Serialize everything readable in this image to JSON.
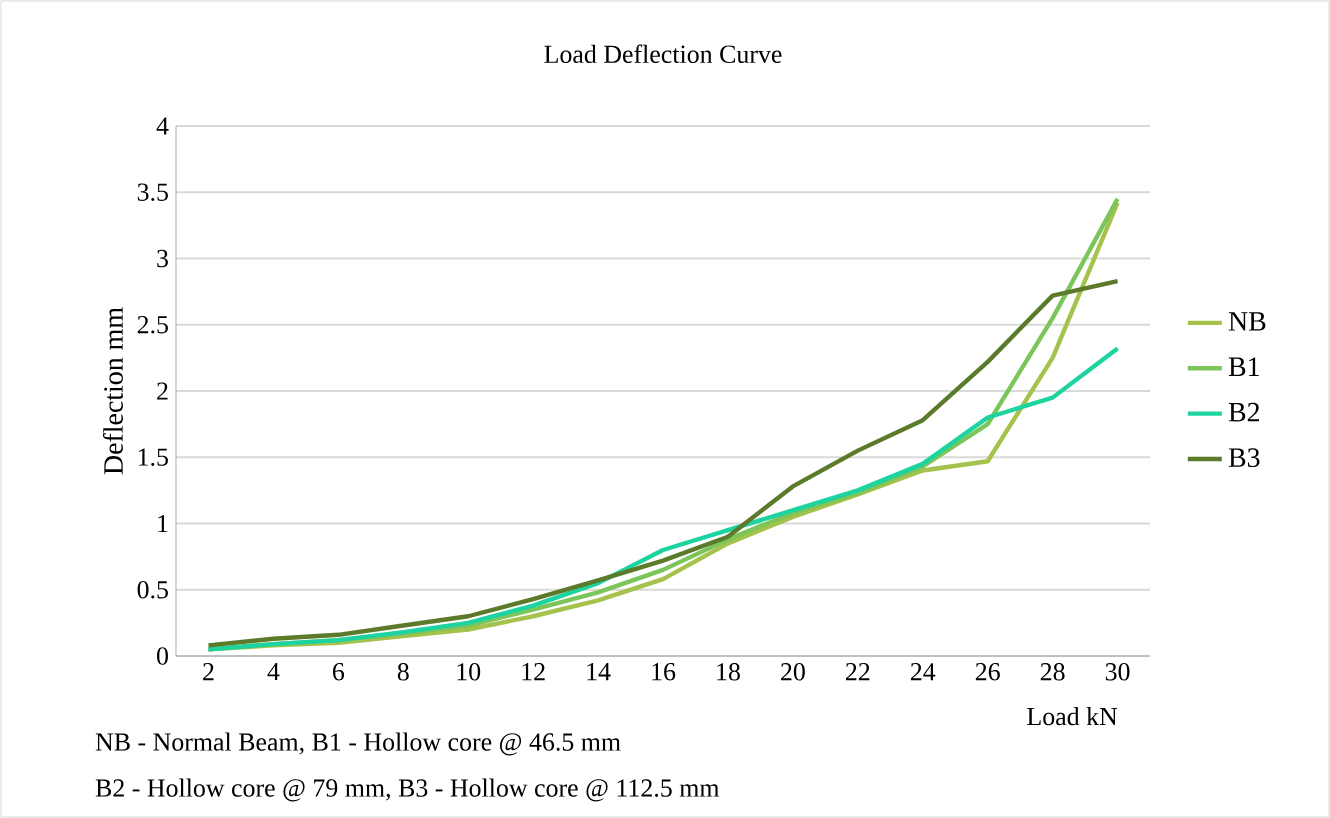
{
  "chart_data": {
    "type": "line",
    "title": "Load Deflection Curve",
    "xlabel": "Load kN",
    "ylabel": "Deflection mm",
    "categories": [
      "2",
      "4",
      "6",
      "8",
      "10",
      "12",
      "14",
      "16",
      "18",
      "20",
      "22",
      "24",
      "26",
      "28",
      "30"
    ],
    "series": [
      {
        "name": "NB",
        "color": "#a5c24c",
        "values": [
          0.05,
          0.08,
          0.1,
          0.15,
          0.2,
          0.3,
          0.42,
          0.58,
          0.85,
          1.05,
          1.22,
          1.4,
          1.47,
          2.25,
          3.42
        ]
      },
      {
        "name": "B1",
        "color": "#7cc55a",
        "values": [
          0.05,
          0.09,
          0.12,
          0.17,
          0.23,
          0.35,
          0.48,
          0.65,
          0.88,
          1.08,
          1.23,
          1.43,
          1.75,
          2.55,
          3.45
        ]
      },
      {
        "name": "B2",
        "color": "#1dd3a0",
        "values": [
          0.05,
          0.09,
          0.12,
          0.18,
          0.25,
          0.38,
          0.55,
          0.8,
          0.95,
          1.1,
          1.25,
          1.45,
          1.8,
          1.95,
          2.32
        ]
      },
      {
        "name": "B3",
        "color": "#5b7a2a",
        "values": [
          0.08,
          0.13,
          0.16,
          0.23,
          0.3,
          0.43,
          0.57,
          0.72,
          0.9,
          1.28,
          1.55,
          1.78,
          2.22,
          2.72,
          2.83
        ]
      }
    ],
    "ylim": [
      0,
      4
    ],
    "yticks": [
      0,
      0.5,
      1,
      1.5,
      2,
      2.5,
      3,
      3.5,
      4
    ],
    "grid": "y",
    "legend": "right",
    "marker": "none",
    "line_style": "solid",
    "annotations": [
      "NB - Normal Beam, B1 - Hollow core @ 46.5 mm",
      "B2 - Hollow core @ 79 mm, B3 - Hollow core @ 112.5 mm"
    ]
  }
}
